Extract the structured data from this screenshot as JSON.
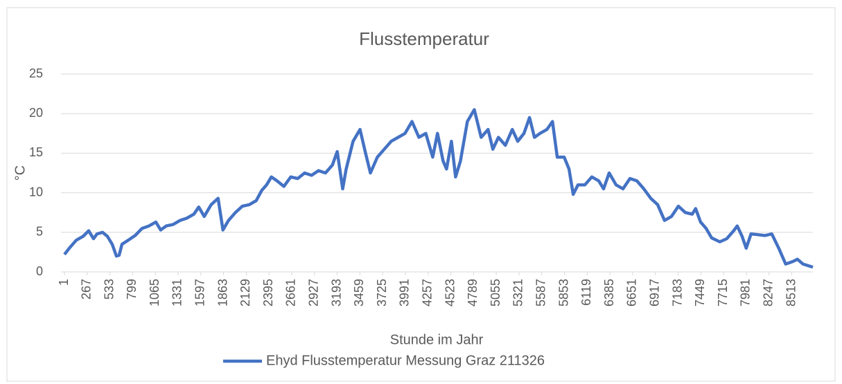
{
  "chart_data": {
    "type": "line",
    "title": "Flusstemperatur",
    "x_label": "Stunde im Jahr",
    "y_label": "°C",
    "xlim": [
      1,
      8760
    ],
    "xticks": [
      1,
      267,
      533,
      799,
      1065,
      1331,
      1597,
      1863,
      2129,
      2395,
      2661,
      2927,
      3193,
      3459,
      3725,
      3991,
      4257,
      4523,
      4789,
      5055,
      5321,
      5587,
      5853,
      6119,
      6385,
      6651,
      6917,
      7183,
      7449,
      7715,
      7981,
      8247,
      8513
    ],
    "ylim": [
      0,
      25
    ],
    "yticks": [
      0,
      5,
      10,
      15,
      20,
      25
    ],
    "grid": true,
    "legend": "bottom",
    "x": [
      1,
      58,
      139,
      220,
      285,
      341,
      382,
      447,
      503,
      560,
      609,
      641,
      674,
      747,
      828,
      909,
      990,
      1071,
      1127,
      1192,
      1273,
      1354,
      1435,
      1516,
      1573,
      1637,
      1718,
      1799,
      1856,
      1921,
      2002,
      2083,
      2164,
      2245,
      2310,
      2367,
      2423,
      2488,
      2569,
      2650,
      2731,
      2812,
      2893,
      2974,
      3055,
      3136,
      3193,
      3257,
      3298,
      3379,
      3460,
      3525,
      3582,
      3663,
      3744,
      3825,
      3906,
      3987,
      4068,
      4149,
      4230,
      4311,
      4367,
      4432,
      4473,
      4530,
      4578,
      4635,
      4716,
      4797,
      4878,
      4959,
      5015,
      5080,
      5161,
      5242,
      5306,
      5379,
      5444,
      5501,
      5566,
      5647,
      5712,
      5768,
      5849,
      5906,
      5955,
      6011,
      6092,
      6173,
      6254,
      6311,
      6376,
      6457,
      6538,
      6619,
      6700,
      6781,
      6862,
      6943,
      7024,
      7105,
      7186,
      7267,
      7348,
      7388,
      7445,
      7510,
      7574,
      7671,
      7752,
      7833,
      7874,
      7931,
      7980,
      8036,
      8117,
      8198,
      8279,
      8360,
      8441,
      8522,
      8579,
      8643,
      8760
    ],
    "series": [
      {
        "name": "Ehyd Flusstemperatur Messung Graz 211326",
        "color": "#4472c4",
        "values": [
          2.2,
          3,
          4,
          4.5,
          5.2,
          4.2,
          4.8,
          5,
          4.5,
          3.5,
          2,
          2.1,
          3.5,
          4,
          4.6,
          5.5,
          5.8,
          6.3,
          5.3,
          5.8,
          6,
          6.5,
          6.8,
          7.3,
          8.2,
          7,
          8.5,
          9.3,
          5.3,
          6.5,
          7.5,
          8.3,
          8.5,
          9,
          10.3,
          11,
          12,
          11.5,
          10.8,
          12,
          11.8,
          12.5,
          12.2,
          12.8,
          12.5,
          13.5,
          15.2,
          10.5,
          13,
          16.5,
          18,
          15,
          12.5,
          14.5,
          15.5,
          16.5,
          17,
          17.5,
          19,
          17,
          17.5,
          14.5,
          17.5,
          14,
          13,
          16.5,
          12,
          14,
          19,
          20.5,
          17,
          18,
          15.5,
          17,
          16,
          18,
          16.5,
          17.5,
          19.5,
          17,
          17.5,
          18,
          19,
          14.5,
          14.5,
          13,
          9.8,
          11,
          11,
          12,
          11.5,
          10.5,
          12.5,
          11,
          10.5,
          11.8,
          11.5,
          10.5,
          9.3,
          8.5,
          6.5,
          7,
          8.3,
          7.5,
          7.3,
          8,
          6.3,
          5.5,
          4.3,
          3.8,
          4.2,
          5.2,
          5.8,
          4.5,
          3,
          4.8,
          4.7,
          4.6,
          4.8,
          3,
          1,
          1.3,
          1.6,
          1,
          0.6
        ]
      }
    ]
  }
}
